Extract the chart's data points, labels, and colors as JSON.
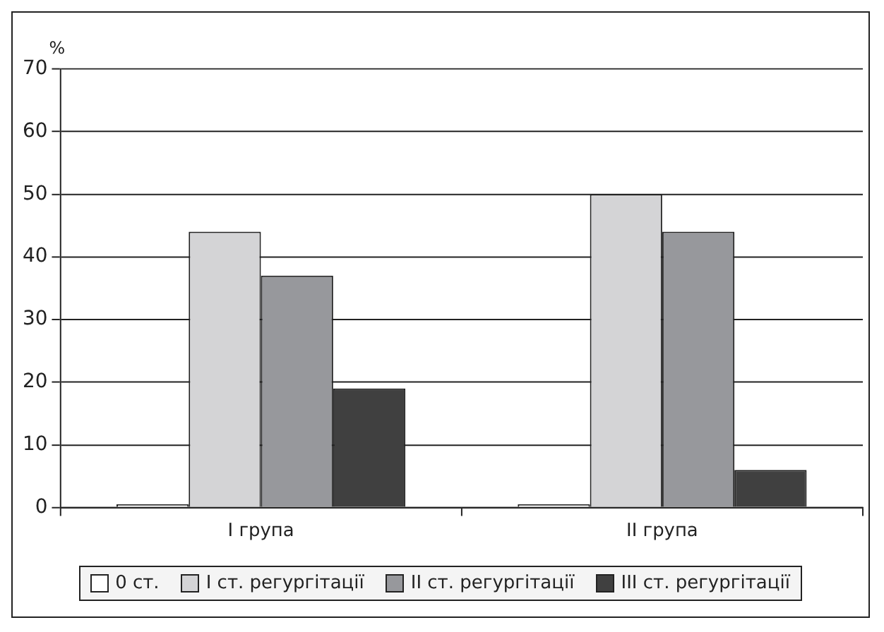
{
  "chart_data": {
    "type": "bar",
    "ylabel": "%",
    "categories": [
      "I група",
      "II група"
    ],
    "series": [
      {
        "name": "0 ст.",
        "color": "#ffffff",
        "values": [
          0.5,
          0.5
        ]
      },
      {
        "name": "I ст. регургітації",
        "color": "#d4d4d6",
        "values": [
          44,
          50
        ]
      },
      {
        "name": "II ст. регургітації",
        "color": "#97989c",
        "values": [
          37,
          44
        ]
      },
      {
        "name": "III ст. регургітації",
        "color": "#404040",
        "values": [
          19,
          6
        ]
      }
    ],
    "ylim": [
      0,
      70
    ],
    "yticks": [
      0,
      10,
      20,
      30,
      40,
      50,
      60,
      70
    ],
    "grid": "y",
    "legend": "bottom"
  }
}
